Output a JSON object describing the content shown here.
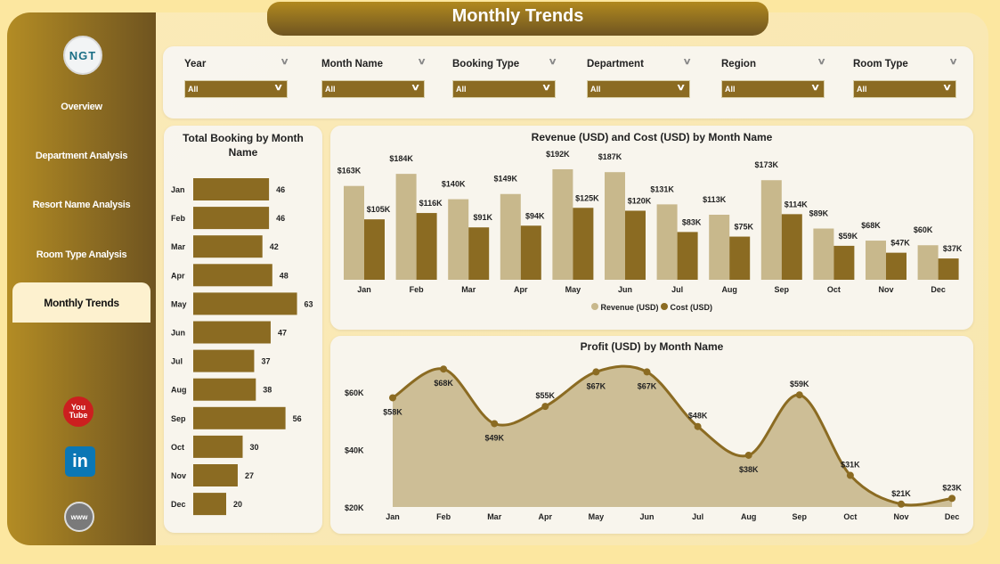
{
  "header": {
    "title": "Monthly Trends"
  },
  "sidebar": {
    "logo_text": "NGT",
    "items": [
      {
        "label": "Overview"
      },
      {
        "label": "Department Analysis"
      },
      {
        "label": "Resort Name Analysis"
      },
      {
        "label": "Room Type Analysis"
      },
      {
        "label": "Monthly Trends",
        "active": true
      }
    ],
    "social": [
      {
        "icon": "youtube-icon",
        "label": "You Tube",
        "color": "#cc1f1f"
      },
      {
        "icon": "linkedin-icon",
        "label": "in",
        "color": "#0a77b5"
      },
      {
        "icon": "globe-icon",
        "label": "www",
        "color": "#7a7a7a"
      }
    ]
  },
  "filters": [
    {
      "label": "Year",
      "value": "All"
    },
    {
      "label": "Month Name",
      "value": "All"
    },
    {
      "label": "Booking Type",
      "value": "All"
    },
    {
      "label": "Department",
      "value": "All"
    },
    {
      "label": "Region",
      "value": "All"
    },
    {
      "label": "Room Type",
      "value": "All"
    }
  ],
  "colors": {
    "accent": "#8b6b22",
    "light": "#c8b88c"
  },
  "chart_data": [
    {
      "type": "bar",
      "orientation": "horizontal",
      "title": "Total Booking by Month Name",
      "categories": [
        "Jan",
        "Feb",
        "Mar",
        "Apr",
        "May",
        "Jun",
        "Jul",
        "Aug",
        "Sep",
        "Oct",
        "Nov",
        "Dec"
      ],
      "values": [
        46,
        46,
        42,
        48,
        63,
        47,
        37,
        38,
        56,
        30,
        27,
        20
      ]
    },
    {
      "type": "bar",
      "title": "Revenue (USD) and Cost (USD) by Month Name",
      "categories": [
        "Jan",
        "Feb",
        "Mar",
        "Apr",
        "May",
        "Jun",
        "Jul",
        "Aug",
        "Sep",
        "Oct",
        "Nov",
        "Dec"
      ],
      "series": [
        {
          "name": "Revenue (USD)",
          "color": "#c8b88c",
          "values": [
            163,
            184,
            140,
            149,
            192,
            187,
            131,
            113,
            173,
            89,
            68,
            60
          ],
          "labels": [
            "$163K",
            "$184K",
            "$140K",
            "$149K",
            "$192K",
            "$187K",
            "$131K",
            "$113K",
            "$173K",
            "$89K",
            "$68K",
            "$60K"
          ]
        },
        {
          "name": "Cost (USD)",
          "color": "#8b6b22",
          "values": [
            105,
            116,
            91,
            94,
            125,
            120,
            83,
            75,
            114,
            59,
            47,
            37
          ],
          "labels": [
            "$105K",
            "$116K",
            "$91K",
            "$94K",
            "$125K",
            "$120K",
            "$83K",
            "$75K",
            "$114K",
            "$59K",
            "$47K",
            "$37K"
          ]
        }
      ],
      "legend": "bottom"
    },
    {
      "type": "area",
      "title": "Profit (USD) by Month Name",
      "categories": [
        "Jan",
        "Feb",
        "Mar",
        "Apr",
        "May",
        "Jun",
        "Jul",
        "Aug",
        "Sep",
        "Oct",
        "Nov",
        "Dec"
      ],
      "values": [
        58,
        68,
        49,
        55,
        67,
        67,
        48,
        38,
        59,
        31,
        21,
        23
      ],
      "labels": [
        "$58K",
        "$68K",
        "$49K",
        "$55K",
        "$67K",
        "$67K",
        "$48K",
        "$38K",
        "$59K",
        "$31K",
        "$21K",
        "$23K"
      ],
      "yticks": [
        "$20K",
        "$40K",
        "$60K"
      ],
      "ytick_values": [
        20,
        40,
        60
      ],
      "ylim": [
        20,
        70
      ]
    }
  ]
}
